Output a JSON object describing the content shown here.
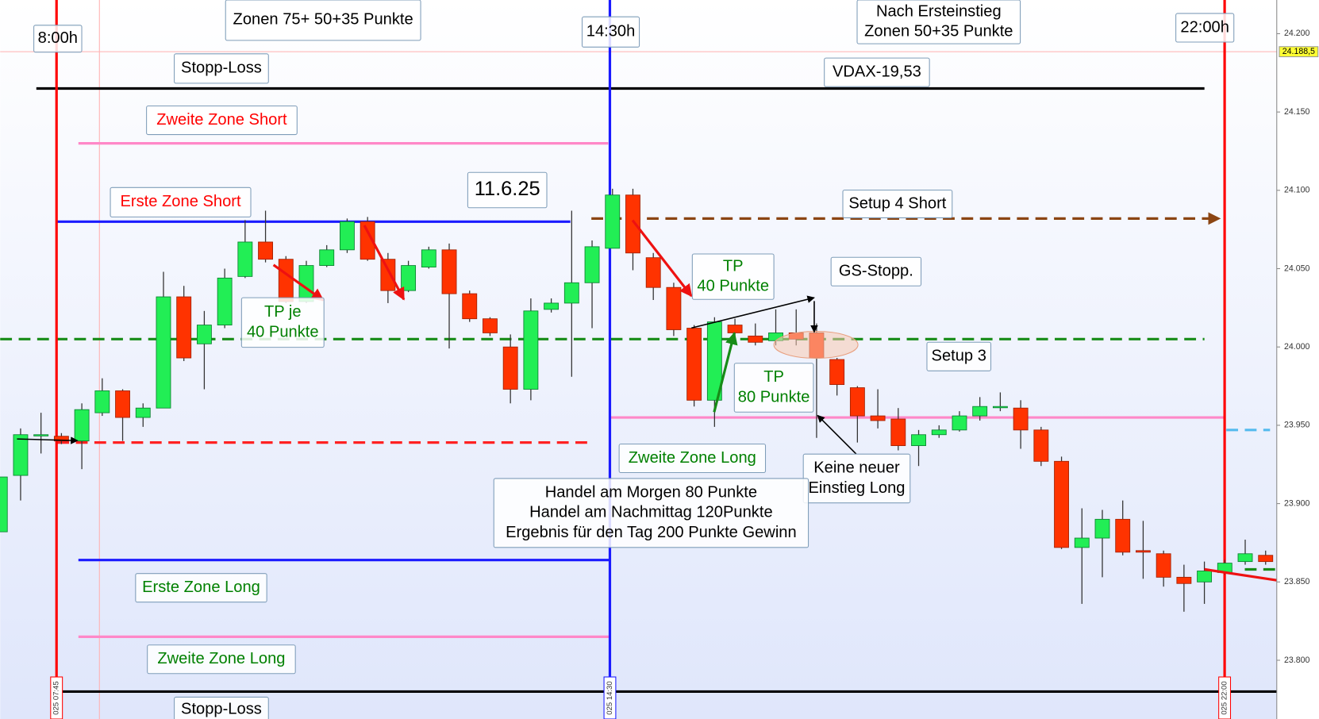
{
  "chart_data": {
    "type": "candlestick",
    "up_color": "#22ee55",
    "down_color": "#ff3300",
    "open": [
      23882,
      23918,
      23944,
      23943,
      23940,
      23958,
      23972,
      23955,
      23961,
      24032,
      24002,
      24014,
      24045,
      24067,
      24056,
      24029,
      24052,
      24062,
      24080,
      24056,
      24036,
      24051,
      24062,
      24034,
      24018,
      24000,
      23973,
      24024,
      24028,
      24041,
      24063,
      24097,
      24057,
      24038,
      24012,
      23966,
      24014,
      24007,
      24004,
      24009,
      24009,
      23992,
      23974,
      23956,
      23954,
      23937,
      23944,
      23947,
      23956,
      23962,
      23961,
      23947,
      23927,
      23872,
      23878,
      23890,
      23870,
      23868,
      23853,
      23850,
      23856,
      23863,
      23867
    ],
    "high": [
      23917,
      23948,
      23958,
      23945,
      23964,
      23980,
      23973,
      23964,
      24048,
      24039,
      24023,
      24050,
      24081,
      24087,
      24058,
      24055,
      24065,
      24082,
      24083,
      24060,
      24055,
      24064,
      24066,
      24036,
      24019,
      24008,
      24031,
      24031,
      24087,
      24068,
      24101,
      24101,
      24060,
      24041,
      24014,
      24019,
      24018,
      24015,
      24024,
      24024,
      24015,
      23993,
      23975,
      23973,
      23961,
      23947,
      23950,
      23959,
      23968,
      23971,
      23966,
      23949,
      23930,
      23897,
      23896,
      23902,
      23889,
      23870,
      23861,
      23863,
      23864,
      23877,
      23870
    ],
    "low": [
      23882,
      23902,
      23932,
      23938,
      23922,
      23956,
      23940,
      23949,
      23961,
      23991,
      23973,
      24012,
      24044,
      24054,
      24028,
      24028,
      24051,
      24060,
      24055,
      24028,
      24035,
      24050,
      23999,
      24016,
      24007,
      23964,
      23966,
      24022,
      23981,
      24012,
      24063,
      24049,
      24030,
      24007,
      23962,
      23949,
      24004,
      24001,
      24001,
      24001,
      23942,
      23969,
      23939,
      23948,
      23934,
      23924,
      23942,
      23946,
      23953,
      23959,
      23935,
      23924,
      23871,
      23836,
      23853,
      23867,
      23852,
      23847,
      23831,
      23836,
      23855,
      23861,
      23861
    ],
    "close": [
      23917,
      23944,
      23944,
      23940,
      23960,
      23972,
      23955,
      23961,
      24032,
      23993,
      24014,
      24044,
      24067,
      24056,
      24029,
      24052,
      24062,
      24080,
      24056,
      24036,
      24052,
      24062,
      24034,
      24018,
      24009,
      23973,
      24023,
      24028,
      24041,
      24064,
      24097,
      24060,
      24038,
      24011,
      23966,
      24016,
      24009,
      24003,
      24009,
      24005,
      23993,
      23976,
      23956,
      23953,
      23937,
      23944,
      23947,
      23956,
      23962,
      23962,
      23947,
      23927,
      23872,
      23878,
      23890,
      23869,
      23869,
      23853,
      23849,
      23857,
      23862,
      23868,
      23863
    ],
    "ylim": [
      23762.5,
      24221.5
    ],
    "yticks": [
      {
        "value": 24200,
        "label": "24.200"
      },
      {
        "value": 24150,
        "label": "24.150"
      },
      {
        "value": 24100,
        "label": "24.100"
      },
      {
        "value": 24050,
        "label": "24.050"
      },
      {
        "value": 24000,
        "label": "24.000"
      },
      {
        "value": 23950,
        "label": "23.950"
      },
      {
        "value": 23900,
        "label": "23.900"
      },
      {
        "value": 23850,
        "label": "23.850"
      },
      {
        "value": 23800,
        "label": "23.800"
      }
    ],
    "last_price": {
      "value": 24188.5,
      "label": "24.188,5"
    },
    "levels": [
      {
        "value": 24165,
        "color": "#000000",
        "style": "solid"
      },
      {
        "value": 24130,
        "color": "#ff88c8",
        "style": "solid"
      },
      {
        "value": 24080,
        "color": "#1a1aff",
        "style": "solid"
      },
      {
        "value": 24082,
        "color": "#8b4513",
        "style": "dashed"
      },
      {
        "value": 24005,
        "color": "#178c17",
        "style": "dashed"
      },
      {
        "value": 23939,
        "color": "#ff2222",
        "style": "dashed"
      },
      {
        "value": 23955,
        "color": "#ff88c8",
        "style": "solid"
      },
      {
        "value": 23864,
        "color": "#1a1aff",
        "style": "solid"
      },
      {
        "value": 23815,
        "color": "#ff88c8",
        "style": "solid"
      },
      {
        "value": 23780,
        "color": "#000000",
        "style": "solid"
      },
      {
        "value": 23947,
        "color": "#55bbee",
        "style": "dashed"
      },
      {
        "value": 23858,
        "color": "#178c17",
        "style": "dashed"
      }
    ],
    "time_markers": [
      {
        "label": "025 07:45",
        "color": "#ff0000"
      },
      {
        "label": "025 14:30",
        "color": "#1a1aff"
      },
      {
        "label": "025 22:00",
        "color": "#ff0000"
      }
    ],
    "annotations": [
      {
        "lines": [
          "8:00h"
        ],
        "color": "#000000"
      },
      {
        "lines": [
          "Zonen 75+ 50+35 Punkte"
        ],
        "color": "#000000"
      },
      {
        "lines": [
          "14:30h"
        ],
        "color": "#000000"
      },
      {
        "lines": [
          "Nach Ersteinstieg",
          "Zonen 50+35 Punkte"
        ],
        "color": "#000000"
      },
      {
        "lines": [
          "22:00h"
        ],
        "color": "#000000"
      },
      {
        "lines": [
          "Stopp-Loss"
        ],
        "color": "#000000"
      },
      {
        "lines": [
          "VDAX-19,53"
        ],
        "color": "#000000"
      },
      {
        "lines": [
          "Zweite Zone Short"
        ],
        "color": "#ff0000"
      },
      {
        "lines": [
          "11.6.25"
        ],
        "color": "#000000"
      },
      {
        "lines": [
          "Erste Zone Short"
        ],
        "color": "#ff0000"
      },
      {
        "lines": [
          "Setup 4 Short"
        ],
        "color": "#000000"
      },
      {
        "lines": [
          "TP",
          "40 Punkte"
        ],
        "color": "#008000"
      },
      {
        "lines": [
          "GS-Stopp."
        ],
        "color": "#000000"
      },
      {
        "lines": [
          "TP je",
          "40 Punkte"
        ],
        "color": "#008000"
      },
      {
        "lines": [
          "Setup 3"
        ],
        "color": "#000000"
      },
      {
        "lines": [
          "TP",
          "80 Punkte"
        ],
        "color": "#008000"
      },
      {
        "lines": [
          "Zweite  Zone Long"
        ],
        "color": "#008000"
      },
      {
        "lines": [
          "Keine neuer",
          "Einstieg Long"
        ],
        "color": "#000000"
      },
      {
        "lines": [
          "Handel am Morgen 80 Punkte",
          "Handel am Nachmittag 120Punkte",
          "Ergebnis für den Tag 200 Punkte Gewinn"
        ],
        "color": "#000000"
      },
      {
        "lines": [
          "Erste Zone Long"
        ],
        "color": "#008000"
      },
      {
        "lines": [
          "Zweite  Zone Long"
        ],
        "color": "#008000"
      },
      {
        "lines": [
          "Stopp-Loss"
        ],
        "color": "#000000"
      }
    ]
  }
}
